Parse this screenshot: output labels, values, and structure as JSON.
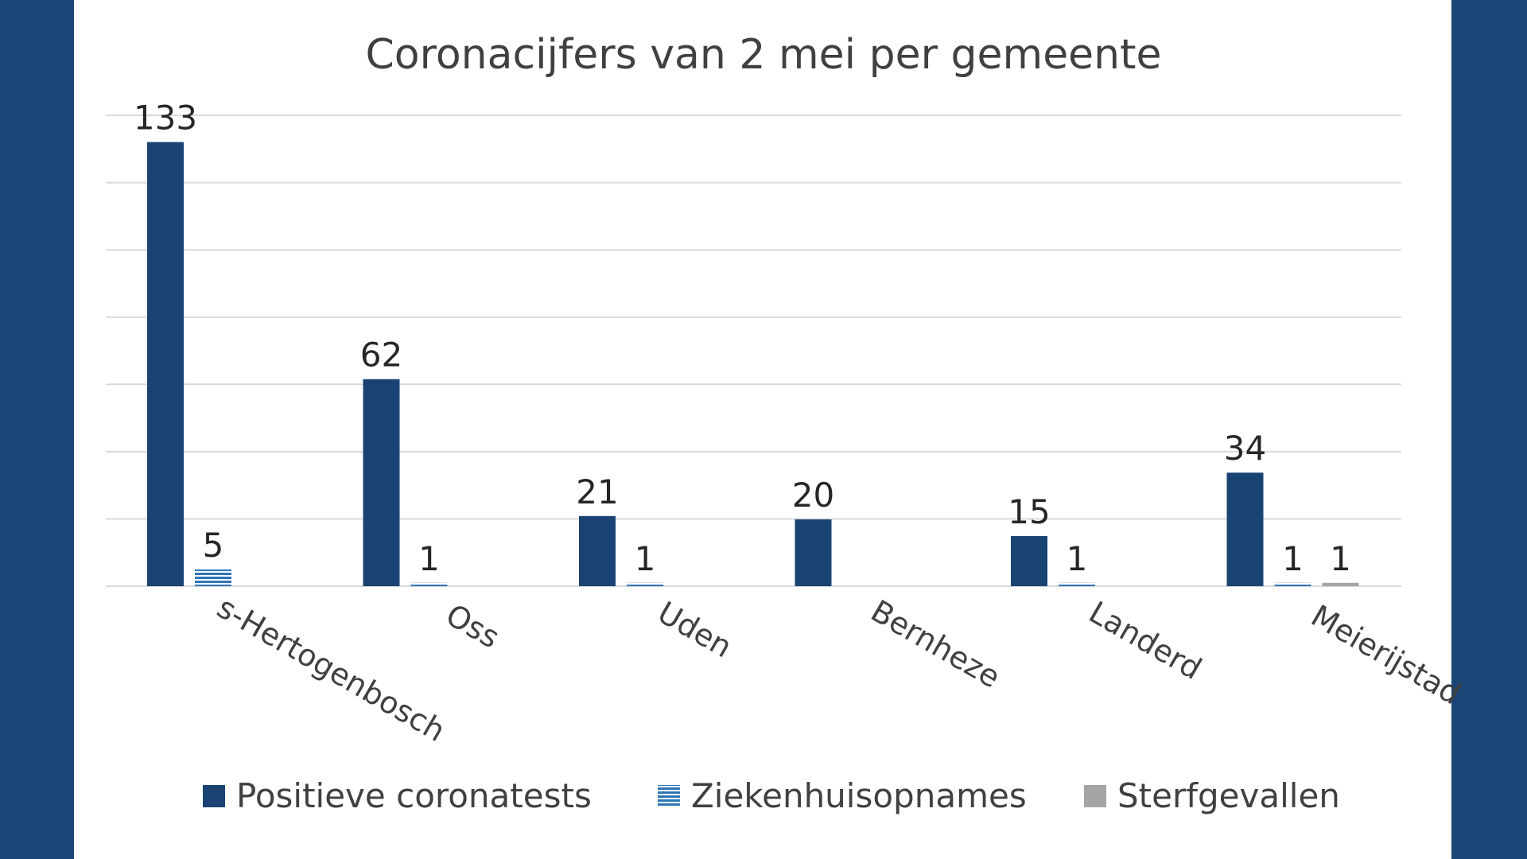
{
  "chart_data": {
    "type": "bar",
    "title": "Coronacijfers van 2 mei per gemeente",
    "categories": [
      "s-Hertogenbosch",
      "Oss",
      "Uden",
      "Bernheze",
      "Landerd",
      "Meierijstad"
    ],
    "series": [
      {
        "name": "Positieve coronatests",
        "values": [
          133,
          62,
          21,
          20,
          15,
          34
        ],
        "color": "#1A4373",
        "pattern": "solid"
      },
      {
        "name": "Ziekenhuisopnames",
        "values": [
          5,
          1,
          1,
          null,
          1,
          1
        ],
        "color": "#2E75B6",
        "pattern": "horizontal-stripes"
      },
      {
        "name": "Sterfgevallen",
        "values": [
          null,
          null,
          null,
          null,
          null,
          1
        ],
        "color": "#A5A5A5",
        "pattern": "solid"
      }
    ],
    "ylim": [
      0,
      141
    ],
    "grid": true,
    "legend_position": "bottom",
    "data_labels": true
  },
  "colors": {
    "frame": "#194677",
    "background": "#FFFFFF",
    "gridline": "#D9D9D9",
    "text": "#404040"
  }
}
